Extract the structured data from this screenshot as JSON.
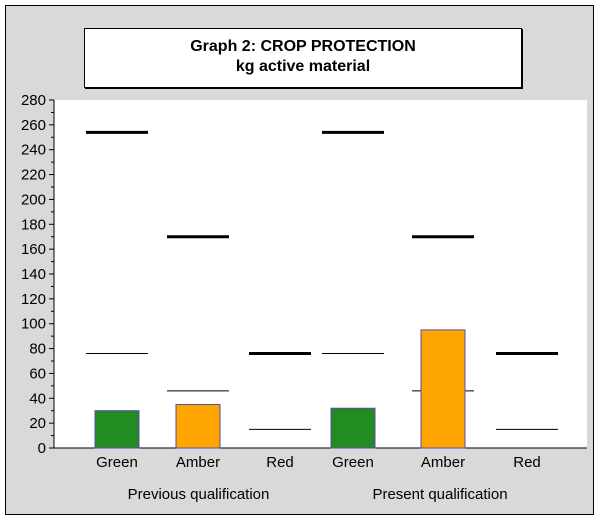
{
  "chart_data": {
    "type": "bar",
    "title": "Graph 2: CROP PROTECTION",
    "subtitle": "kg active material",
    "categories": [
      "Green",
      "Amber",
      "Red",
      "Green",
      "Amber",
      "Red"
    ],
    "groups": [
      "Previous qualification",
      "Present qualification"
    ],
    "values": [
      30,
      35,
      null,
      32,
      95,
      null
    ],
    "bar_colors": [
      "#228B22",
      "#FFA500",
      null,
      "#228B22",
      "#FFA500",
      null
    ],
    "upper_reference": [
      254,
      170,
      76,
      254,
      170,
      76
    ],
    "lower_reference": [
      76,
      46,
      15,
      76,
      46,
      15
    ],
    "ylim": [
      0,
      280
    ],
    "yticks": [
      0,
      20,
      40,
      60,
      80,
      100,
      120,
      140,
      160,
      180,
      200,
      220,
      240,
      260,
      280
    ],
    "grid": false,
    "legend": "none"
  }
}
